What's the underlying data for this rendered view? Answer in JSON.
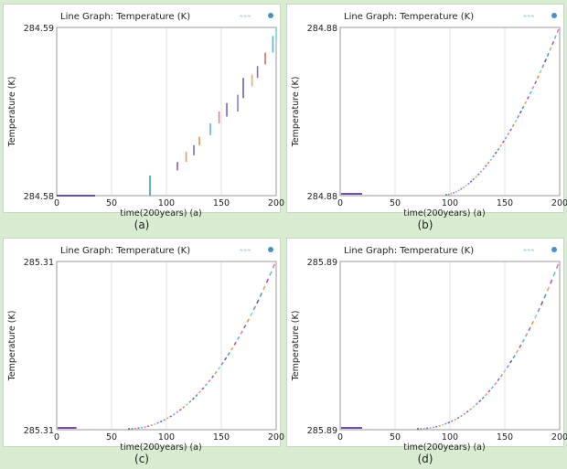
{
  "chart_data": [
    {
      "type": "line",
      "title": "Line Graph: Temperature (K)",
      "xlabel": "time(200years) (a)",
      "ylabel": "Temperature (K)",
      "xlim": [
        0,
        200
      ],
      "x_ticks": [
        "0",
        "50",
        "100",
        "150",
        "200"
      ],
      "y_ticks": [
        "284.58",
        "284.59"
      ],
      "caption": "(a)",
      "grid": true,
      "segments": [
        {
          "x0": 0,
          "x1": 35,
          "y0": 0.0,
          "y1": 0.0,
          "color": "#6a4fa3"
        },
        {
          "x0": 85,
          "x1": 85,
          "y0": 0.0,
          "y1": 0.12,
          "color": "#3ea0a8"
        },
        {
          "x0": 110,
          "x1": 110,
          "y0": 0.15,
          "y1": 0.2,
          "color": "#a24fb8"
        },
        {
          "x0": 118,
          "x1": 118,
          "y0": 0.2,
          "y1": 0.26,
          "color": "#e3a05a"
        },
        {
          "x0": 125,
          "x1": 125,
          "y0": 0.24,
          "y1": 0.3,
          "color": "#7f6ad0"
        },
        {
          "x0": 130,
          "x1": 130,
          "y0": 0.3,
          "y1": 0.35,
          "color": "#e08f3d"
        },
        {
          "x0": 140,
          "x1": 140,
          "y0": 0.36,
          "y1": 0.43,
          "color": "#5fb2e0"
        },
        {
          "x0": 148,
          "x1": 148,
          "y0": 0.43,
          "y1": 0.5,
          "color": "#e37aa8"
        },
        {
          "x0": 155,
          "x1": 155,
          "y0": 0.47,
          "y1": 0.55,
          "color": "#7e62c4"
        },
        {
          "x0": 165,
          "x1": 165,
          "y0": 0.5,
          "y1": 0.6,
          "color": "#8a7fd6"
        },
        {
          "x0": 170,
          "x1": 170,
          "y0": 0.58,
          "y1": 0.7,
          "color": "#6b58b8"
        },
        {
          "x0": 178,
          "x1": 178,
          "y0": 0.65,
          "y1": 0.72,
          "color": "#e2b25f"
        },
        {
          "x0": 183,
          "x1": 183,
          "y0": 0.7,
          "y1": 0.77,
          "color": "#8a6ad0"
        },
        {
          "x0": 190,
          "x1": 190,
          "y0": 0.78,
          "y1": 0.85,
          "color": "#e06a5f"
        },
        {
          "x0": 197,
          "x1": 197,
          "y0": 0.85,
          "y1": 0.95,
          "color": "#5fb2e0"
        },
        {
          "x0": 200,
          "x1": 200,
          "y0": 0.92,
          "y1": 1.0,
          "color": "#7fd6c4"
        }
      ]
    },
    {
      "type": "line",
      "title": "Line Graph: Temperature (K)",
      "xlabel": "time(200years) (a)",
      "ylabel": "Temperature (K)",
      "xlim": [
        0,
        200
      ],
      "x_ticks": [
        "0",
        "50",
        "100",
        "150",
        "200"
      ],
      "y_ticks": [
        "284.88",
        "284.88"
      ],
      "caption": "(b)",
      "grid": true,
      "curve": {
        "start": 96,
        "exponent": 1.7,
        "baseline": [
          0,
          20
        ]
      }
    },
    {
      "type": "line",
      "title": "Line Graph: Temperature (K)",
      "xlabel": "time(200years) (a)",
      "ylabel": "Temperature (K)",
      "xlim": [
        0,
        200
      ],
      "x_ticks": [
        "0",
        "50",
        "100",
        "150",
        "200"
      ],
      "y_ticks": [
        "285.31",
        "285.31"
      ],
      "caption": "(c)",
      "grid": true,
      "curve": {
        "start": 65,
        "exponent": 2.1,
        "baseline": [
          0,
          18
        ]
      }
    },
    {
      "type": "line",
      "title": "Line Graph: Temperature (K)",
      "xlabel": "time(200years) (a)",
      "ylabel": "Temperature (K)",
      "xlim": [
        0,
        200
      ],
      "x_ticks": [
        "0",
        "50",
        "100",
        "150",
        "200"
      ],
      "y_ticks": [
        "285.89",
        "285.89"
      ],
      "caption": "(d)",
      "grid": true,
      "curve": {
        "start": 70,
        "exponent": 2.2,
        "baseline": [
          0,
          20
        ]
      }
    }
  ]
}
